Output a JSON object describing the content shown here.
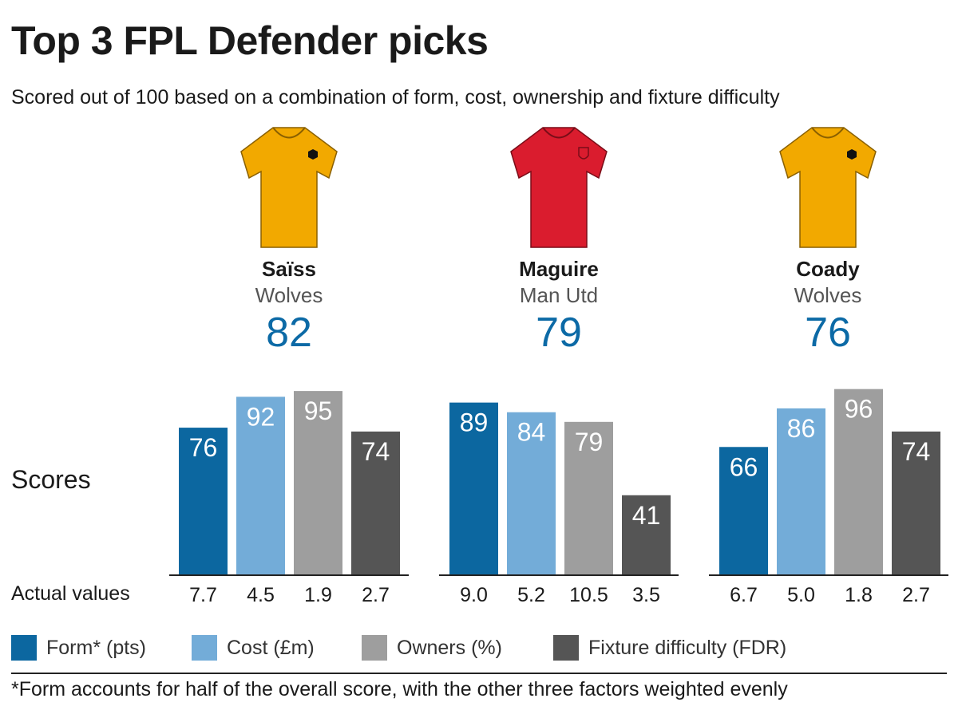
{
  "title": "Top 3 FPL Defender picks",
  "subtitle": "Scored out of 100 based on a combination of form, cost, ownership and fixture difficulty",
  "scores_label": "Scores",
  "actual_values_label": "Actual values",
  "footnote": "*Form accounts for half of the overall score, with the other three factors weighted evenly",
  "colors": {
    "form": "#0c67a0",
    "cost": "#73acd8",
    "owners": "#9e9e9e",
    "fdr": "#555555",
    "score_text": "#0c6aa6",
    "wolves_shirt": "#f2a900",
    "manutd_shirt": "#da1c2e"
  },
  "players": [
    {
      "name": "Saïss",
      "team": "Wolves",
      "score": "82",
      "shirt": "wolves"
    },
    {
      "name": "Maguire",
      "team": "Man Utd",
      "score": "79",
      "shirt": "manutd"
    },
    {
      "name": "Coady",
      "team": "Wolves",
      "score": "76",
      "shirt": "wolves"
    }
  ],
  "legend": [
    {
      "key": "form",
      "label": "Form* (pts)"
    },
    {
      "key": "cost",
      "label": "Cost (£m)"
    },
    {
      "key": "owners",
      "label": "Owners (%)"
    },
    {
      "key": "fdr",
      "label": "Fixture difficulty (FDR)"
    }
  ],
  "chart_data": {
    "type": "bar",
    "ylim": [
      0,
      100
    ],
    "grid": false,
    "categories": [
      "Form* (pts)",
      "Cost (£m)",
      "Owners (%)",
      "Fixture difficulty (FDR)"
    ],
    "groups": [
      {
        "player": "Saïss",
        "scores": [
          76,
          92,
          95,
          74
        ],
        "actual_values": [
          "7.7",
          "4.5",
          "1.9",
          "2.7"
        ]
      },
      {
        "player": "Maguire",
        "scores": [
          89,
          84,
          79,
          41
        ],
        "actual_values": [
          "9.0",
          "5.2",
          "10.5",
          "3.5"
        ]
      },
      {
        "player": "Coady",
        "scores": [
          66,
          86,
          96,
          74
        ],
        "actual_values": [
          "6.7",
          "5.0",
          "1.8",
          "2.7"
        ]
      }
    ]
  }
}
